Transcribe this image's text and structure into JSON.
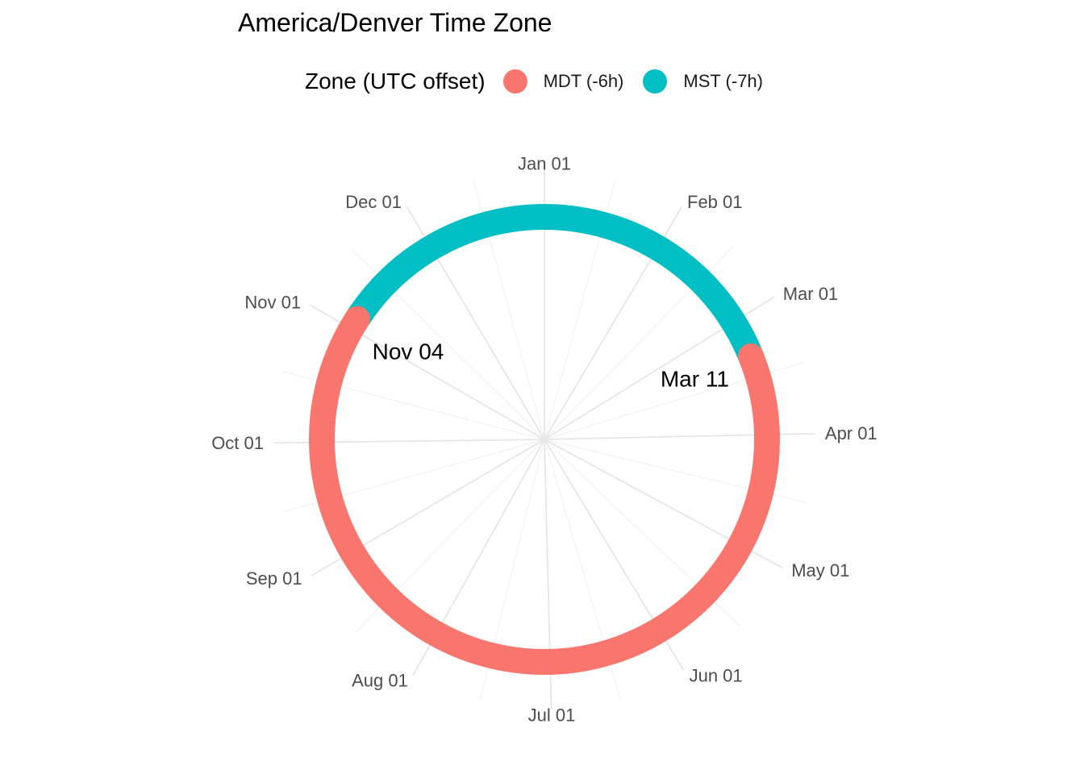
{
  "chart_data": {
    "type": "polar-ring",
    "title": "America/Denver Time Zone",
    "legend": {
      "title": "Zone (UTC offset)",
      "position": "top",
      "entries": [
        {
          "label": "MDT (-6h)",
          "color": "#F8766D"
        },
        {
          "label": "MST (-7h)",
          "color": "#00BFC4"
        }
      ]
    },
    "theta_axis": {
      "start": "Jan 01",
      "direction": "clockwise",
      "tick_labels": [
        "Jan 01",
        "Feb 01",
        "Mar 01",
        "Apr 01",
        "May 01",
        "Jun 01",
        "Jul 01",
        "Aug 01",
        "Sep 01",
        "Oct 01",
        "Nov 01",
        "Dec 01"
      ],
      "tick_day_of_year": [
        1,
        32,
        60,
        91,
        121,
        152,
        182,
        213,
        244,
        274,
        305,
        335
      ],
      "days_in_year": 365,
      "grid": true
    },
    "segments": [
      {
        "zone": "MST (-7h)",
        "start": "Jan 01",
        "end": "Mar 11",
        "start_day": 1,
        "end_day": 70
      },
      {
        "zone": "MDT (-6h)",
        "start": "Mar 11",
        "end": "Nov 04",
        "start_day": 70,
        "end_day": 308
      },
      {
        "zone": "MST (-7h)",
        "start": "Nov 04",
        "end": "Dec 31",
        "start_day": 308,
        "end_day": 365
      }
    ],
    "annotations": [
      {
        "label": "Mar 11",
        "day": 70
      },
      {
        "label": "Nov 04",
        "day": 308
      }
    ]
  }
}
